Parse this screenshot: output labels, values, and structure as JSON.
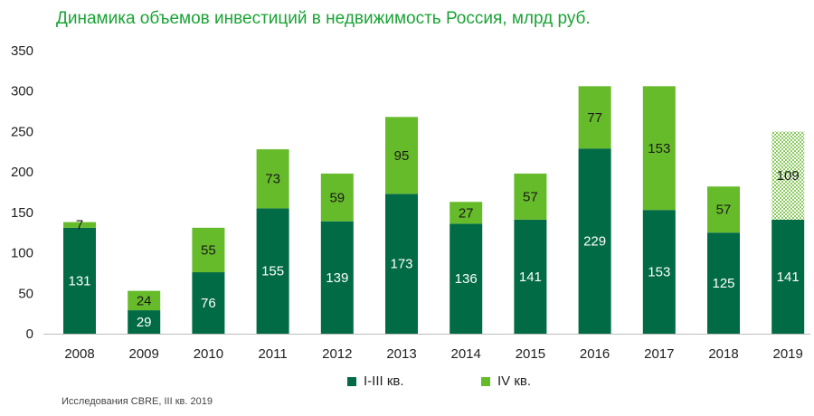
{
  "title": "Динамика объемов инвестиций в недвижимость Россия, млрд руб.",
  "source": "Исследования CBRE, III кв. 2019",
  "colors": {
    "dark": "#006b45",
    "light": "#66bb2a",
    "hatched_light": "#66bb2a"
  },
  "chart_data": {
    "type": "bar",
    "stacked": true,
    "categories": [
      "2008",
      "2009",
      "2010",
      "2011",
      "2012",
      "2013",
      "2014",
      "2015",
      "2016",
      "2017",
      "2018",
      "2019"
    ],
    "series": [
      {
        "name": "I-III кв.",
        "values": [
          131,
          29,
          76,
          155,
          139,
          173,
          136,
          141,
          229,
          153,
          125,
          141
        ]
      },
      {
        "name": "IV кв.",
        "values": [
          7,
          24,
          55,
          73,
          59,
          95,
          27,
          57,
          77,
          153,
          57,
          109
        ]
      }
    ],
    "hatched_category": "2019",
    "ylim": [
      0,
      350
    ],
    "yticks": [
      0,
      50,
      100,
      150,
      200,
      250,
      300,
      350
    ],
    "grid": false,
    "legend_position": "bottom"
  }
}
